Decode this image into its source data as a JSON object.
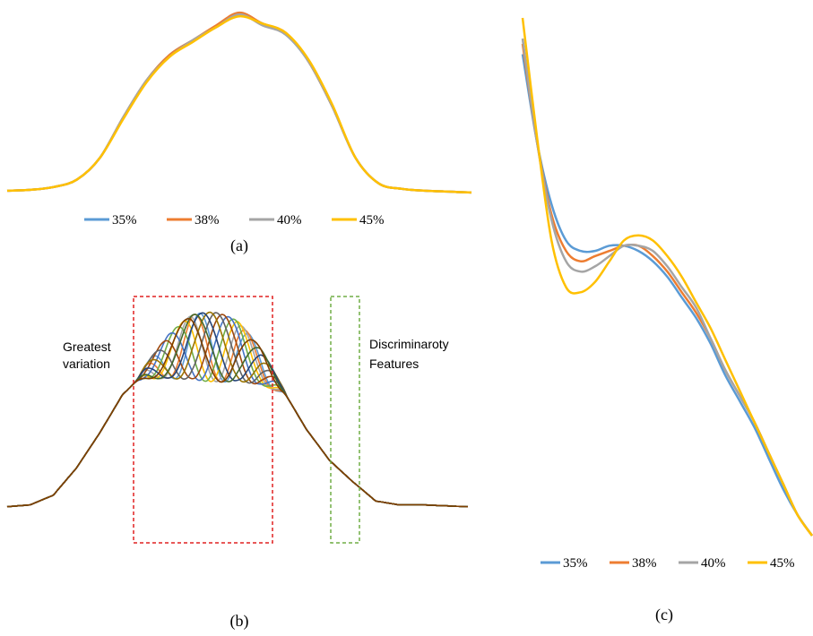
{
  "colors": {
    "s35": "#5B9BD5",
    "s38": "#ED7D31",
    "s40": "#A5A5A5",
    "s45": "#FFC000",
    "red_box": "#E02020",
    "green_box": "#70AD47"
  },
  "chart_data": [
    {
      "panel": "(a)",
      "type": "line",
      "caption": "(a)",
      "legend_position": "bottom",
      "grid": false,
      "axes_visible": false,
      "x": [
        0,
        5,
        10,
        15,
        20,
        25,
        30,
        35,
        40,
        45,
        50,
        55,
        60,
        65,
        70,
        75,
        80,
        85,
        90,
        95,
        100
      ],
      "series": [
        {
          "name": "35%",
          "color_key": "s35",
          "values": [
            0.02,
            0.025,
            0.04,
            0.08,
            0.2,
            0.42,
            0.62,
            0.76,
            0.84,
            0.91,
            0.98,
            0.93,
            0.87,
            0.72,
            0.48,
            0.2,
            0.06,
            0.03,
            0.02,
            0.015,
            0.01
          ]
        },
        {
          "name": "38%",
          "color_key": "s38",
          "values": [
            0.02,
            0.025,
            0.04,
            0.08,
            0.2,
            0.42,
            0.62,
            0.76,
            0.84,
            0.92,
            0.99,
            0.93,
            0.88,
            0.72,
            0.48,
            0.2,
            0.06,
            0.03,
            0.02,
            0.015,
            0.01
          ]
        },
        {
          "name": "40%",
          "color_key": "s40",
          "values": [
            0.02,
            0.025,
            0.04,
            0.08,
            0.2,
            0.42,
            0.62,
            0.75,
            0.84,
            0.91,
            0.98,
            0.92,
            0.87,
            0.72,
            0.48,
            0.2,
            0.06,
            0.03,
            0.02,
            0.015,
            0.01
          ]
        },
        {
          "name": "45%",
          "color_key": "s45",
          "values": [
            0.02,
            0.025,
            0.04,
            0.08,
            0.2,
            0.41,
            0.61,
            0.75,
            0.83,
            0.91,
            0.97,
            0.93,
            0.88,
            0.73,
            0.49,
            0.2,
            0.06,
            0.03,
            0.02,
            0.015,
            0.01
          ]
        }
      ]
    },
    {
      "panel": "(b)",
      "type": "line",
      "caption": "(b)",
      "grid": false,
      "axes_visible": false,
      "annotations": [
        "Greatest variation",
        "Discriminaroty Features"
      ],
      "annotation_lines": {
        "greatest": [
          "Greatest",
          "variation"
        ],
        "discriminatory": [
          "Discriminaroty",
          "Features"
        ]
      },
      "series_colors": [
        "#5B9BD5",
        "#ED7D31",
        "#A5A5A5",
        "#FFC000",
        "#70AD47",
        "#4472C4",
        "#9E480E",
        "#636363",
        "#997300",
        "#264478",
        "#43682B",
        "#7F3F00"
      ],
      "shared_base": [
        0.02,
        0.03,
        0.08,
        0.22,
        0.4,
        0.6,
        0.72,
        0.8,
        0.85,
        0.85,
        0.83,
        0.75,
        0.62,
        0.42,
        0.26,
        0.15,
        0.05,
        0.03,
        0.03,
        0.025,
        0.02
      ]
    },
    {
      "panel": "(c)",
      "type": "line",
      "caption": "(c)",
      "legend_position": "bottom",
      "grid": false,
      "axes_visible": false,
      "x": [
        0,
        5,
        10,
        15,
        20,
        25,
        30,
        35,
        40,
        45,
        50,
        55,
        60,
        65,
        70,
        75,
        80,
        85,
        90,
        95,
        100
      ],
      "series": [
        {
          "name": "35%",
          "color_key": "s35",
          "values": [
            0.93,
            0.76,
            0.64,
            0.57,
            0.55,
            0.55,
            0.56,
            0.56,
            0.55,
            0.53,
            0.5,
            0.46,
            0.42,
            0.37,
            0.31,
            0.26,
            0.21,
            0.15,
            0.09,
            0.04,
            0.0
          ]
        },
        {
          "name": "38%",
          "color_key": "s38",
          "values": [
            0.95,
            0.76,
            0.62,
            0.55,
            0.53,
            0.54,
            0.55,
            0.56,
            0.56,
            0.54,
            0.51,
            0.47,
            0.43,
            0.38,
            0.32,
            0.27,
            0.22,
            0.16,
            0.1,
            0.04,
            0.0
          ]
        },
        {
          "name": "40%",
          "color_key": "s40",
          "values": [
            0.96,
            0.76,
            0.61,
            0.53,
            0.51,
            0.52,
            0.54,
            0.56,
            0.56,
            0.55,
            0.52,
            0.48,
            0.44,
            0.38,
            0.32,
            0.27,
            0.22,
            0.16,
            0.1,
            0.04,
            0.0
          ]
        },
        {
          "name": "45%",
          "color_key": "s45",
          "values": [
            1.0,
            0.77,
            0.57,
            0.48,
            0.47,
            0.49,
            0.53,
            0.57,
            0.58,
            0.57,
            0.54,
            0.5,
            0.45,
            0.4,
            0.34,
            0.28,
            0.22,
            0.16,
            0.1,
            0.04,
            0.0
          ]
        }
      ]
    }
  ]
}
